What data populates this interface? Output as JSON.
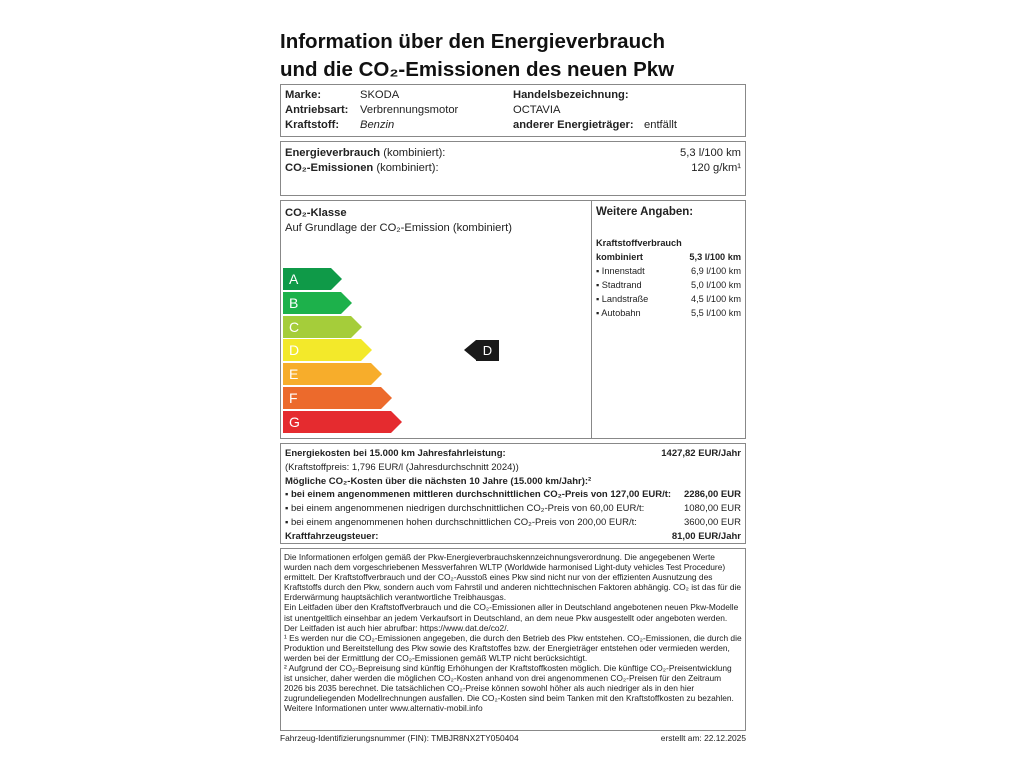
{
  "title": {
    "line1": "Information über den Energieverbrauch",
    "line2": "und die CO₂-Emissionen des neuen Pkw"
  },
  "vehicle": {
    "brand_label": "Marke:",
    "brand": "SKODA",
    "drive_label": "Antriebsart:",
    "drive": "Verbrennungsmotor",
    "fuel_label": "Kraftstoff:",
    "fuel": "Benzin",
    "trade_label": "Handelsbezeichnung:",
    "trade": "OCTAVIA",
    "other_label": "anderer Energieträger:",
    "other": "entfällt"
  },
  "consumption": {
    "energy_label": "Energieverbrauch",
    "energy_suffix": " (kombiniert):",
    "energy_value": "5,3 l/100 km",
    "co2_label": "CO₂-Emissionen",
    "co2_suffix": " (kombiniert):",
    "co2_value": "120 g/km¹"
  },
  "co2class": {
    "title": "CO₂-Klasse",
    "subtitle": "Auf Grundlage der CO₂-Emission (kombiniert)",
    "classes": [
      {
        "letter": "A",
        "color": "#0f9a48"
      },
      {
        "letter": "B",
        "color": "#1db14b"
      },
      {
        "letter": "C",
        "color": "#a5cd3a"
      },
      {
        "letter": "D",
        "color": "#f3e92a"
      },
      {
        "letter": "E",
        "color": "#f7ad2b"
      },
      {
        "letter": "F",
        "color": "#ec6a2c"
      },
      {
        "letter": "G",
        "color": "#e52b2f"
      }
    ],
    "current": "D"
  },
  "further": {
    "title": "Weitere Angaben:",
    "subtitle": "Kraftstoffverbrauch",
    "combined_label": "kombiniert",
    "combined_value": "5,3 l/100 km",
    "rows": [
      {
        "label": "▪ Innenstadt",
        "value": "6,9 l/100 km"
      },
      {
        "label": "▪ Stadtrand",
        "value": "5,0 l/100 km"
      },
      {
        "label": "▪ Landstraße",
        "value": "4,5 l/100 km"
      },
      {
        "label": "▪ Autobahn",
        "value": "5,5 l/100 km"
      }
    ]
  },
  "costs": {
    "energy_label": "Energiekosten bei 15.000 km Jahresfahrleistung:",
    "energy_value": "1427,82 EUR/Jahr",
    "fuel_price": "(Kraftstoffpreis: 1,796 EUR/l (Jahresdurchschnitt 2024))",
    "co2_title": "Mögliche CO₂-Kosten über die nächsten 10 Jahre (15.000 km/Jahr):²",
    "mid_label": "▪ bei einem angenommenen mittleren durchschnittlichen CO₂-Preis von 127,00 EUR/t:",
    "mid_value": "2286,00 EUR",
    "low_label": "▪ bei einem angenommenen niedrigen durchschnittlichen CO₂-Preis von 60,00 EUR/t:",
    "low_value": "1080,00 EUR",
    "high_label": "▪ bei einem angenommenen hohen durchschnittlichen CO₂-Preis von 200,00 EUR/t:",
    "high_value": "3600,00 EUR",
    "tax_label": "Kraftfahrzeugsteuer:",
    "tax_value": "81,00 EUR/Jahr"
  },
  "notes": {
    "p1": "Die Informationen erfolgen gemäß der Pkw-Energieverbrauchskennzeichnungsverordnung. Die angegebenen Werte wurden nach dem vorgeschriebenen Messverfahren WLTP (Worldwide harmonised Light-duty vehicles Test Procedure) ermittelt. Der Kraftstoffverbrauch und der CO₂-Ausstoß eines Pkw sind nicht nur von der effizienten Ausnutzung des Kraftstoffs durch den Pkw, sondern auch vom Fahrstil und anderen nichttechnischen Faktoren abhängig. CO₂ ist das für die Erderwärmung hauptsächlich verantwortliche Treibhausgas.",
    "p2": "Ein Leitfaden über den Kraftstoffverbrauch und die CO₂-Emissionen aller in Deutschland angebotenen neuen Pkw-Modelle ist unentgeltlich einsehbar an jedem Verkaufsort in Deutschland, an dem neue Pkw ausgestellt oder angeboten werden. Der Leitfaden ist auch hier abrufbar: https://www.dat.de/co2/.",
    "p3": "¹ Es werden nur die CO₂-Emissionen angegeben, die durch den Betrieb des Pkw entstehen. CO₂-Emissionen, die durch die Produktion und Bereitstellung des Pkw sowie des Kraftstoffes bzw. der Energieträger entstehen oder vermieden werden, werden bei der Ermittlung der CO₂-Emissionen gemäß WLTP nicht berücksichtigt.",
    "p4": "² Aufgrund der CO₂-Bepreisung sind künftig Erhöhungen der Kraftstoffkosten möglich. Die künftige CO₂-Preisentwicklung ist unsicher, daher werden die möglichen CO₂-Kosten anhand von drei angenommenen CO₂-Preisen für den Zeitraum 2026 bis 2035 berechnet. Die tatsächlichen CO₂-Preise können sowohl höher als auch niedriger als in den hier zugrundeliegenden Modellrechnungen ausfallen. Die CO₂-Kosten sind beim Tanken mit den Kraftstoffkosten zu bezahlen. Weitere Informationen unter www.alternativ-mobil.info"
  },
  "footer": {
    "vin": "Fahrzeug-Identifizierungsnummer (FIN): TMBJR8NX2TY050404",
    "created": "erstellt am: 22.12.2025"
  }
}
